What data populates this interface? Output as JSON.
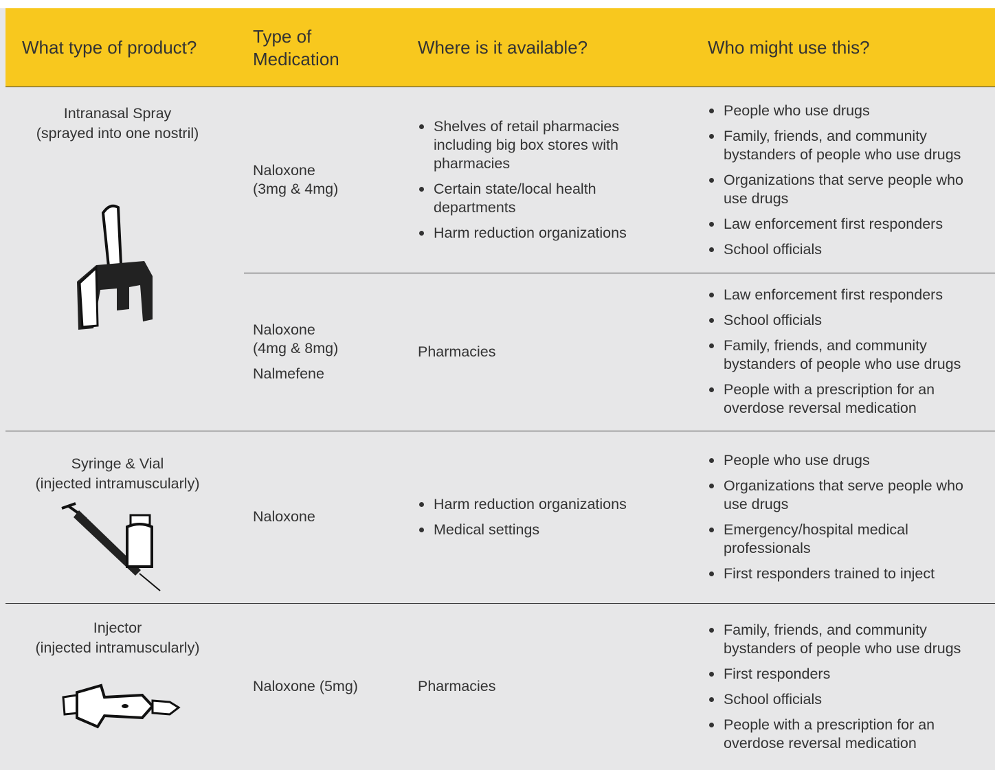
{
  "header": {
    "columns": [
      "What type of product?",
      "Type of Medication",
      "Where is it available?",
      "Who might use this?"
    ]
  },
  "rows": [
    {
      "product": {
        "name": "Intranasal Spray",
        "method": "(sprayed into one nostril)"
      },
      "options": [
        {
          "medications": [
            [
              "Naloxone",
              "(3mg & 4mg)"
            ]
          ],
          "availability": [
            "Shelves of retail pharmacies including big box stores with pharmacies",
            "Certain state/local health departments",
            "Harm reduction organizations"
          ],
          "users": [
            "People who use drugs",
            "Family, friends, and community bystanders of people who use drugs",
            "Organizations that serve people who use drugs",
            "Law enforcement first responders",
            "School officials"
          ]
        },
        {
          "medications": [
            [
              "Naloxone",
              "(4mg & 8mg)"
            ],
            [
              "Nalmefene"
            ]
          ],
          "availability": [
            "Pharmacies"
          ],
          "users": [
            "Law enforcement first responders",
            "School officials",
            "Family, friends, and community bystanders of people who use drugs",
            "People with a prescription for an overdose reversal medication"
          ]
        }
      ]
    },
    {
      "product": {
        "name": "Syringe & Vial",
        "method": "(injected intramuscularly)"
      },
      "options": [
        {
          "medications": [
            [
              "Naloxone"
            ]
          ],
          "availability": [
            "Harm reduction organizations",
            "Medical settings"
          ],
          "users": [
            "People who use drugs",
            "Organizations that serve people who use drugs",
            "Emergency/hospital medical professionals",
            "First responders trained to inject"
          ]
        }
      ]
    },
    {
      "product": {
        "name": "Injector",
        "method": "(injected intramuscularly)"
      },
      "options": [
        {
          "medications": [
            [
              "Naloxone (5mg)"
            ]
          ],
          "availability": [
            "Pharmacies"
          ],
          "users": [
            "Family, friends, and community bystanders of people who use drugs",
            "First responders",
            "School officials",
            "People with a prescription for an overdose reversal medication"
          ]
        }
      ]
    }
  ]
}
